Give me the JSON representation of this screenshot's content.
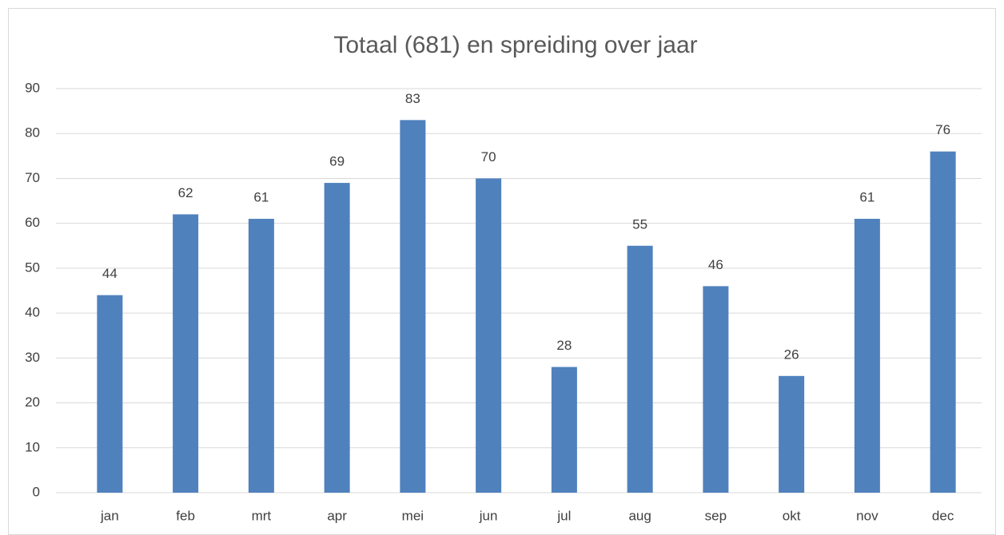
{
  "chart_data": {
    "type": "bar",
    "title": "Totaal (681) en spreiding over jaar",
    "categories": [
      "jan",
      "feb",
      "mrt",
      "apr",
      "mei",
      "jun",
      "jul",
      "aug",
      "sep",
      "okt",
      "nov",
      "dec"
    ],
    "values": [
      44,
      62,
      61,
      69,
      83,
      70,
      28,
      55,
      46,
      26,
      61,
      76
    ],
    "color": "#4f81bd",
    "ylim": [
      0,
      90
    ],
    "yticks": [
      0,
      10,
      20,
      30,
      40,
      50,
      60,
      70,
      80,
      90
    ],
    "grid": true,
    "data_labels": true
  }
}
